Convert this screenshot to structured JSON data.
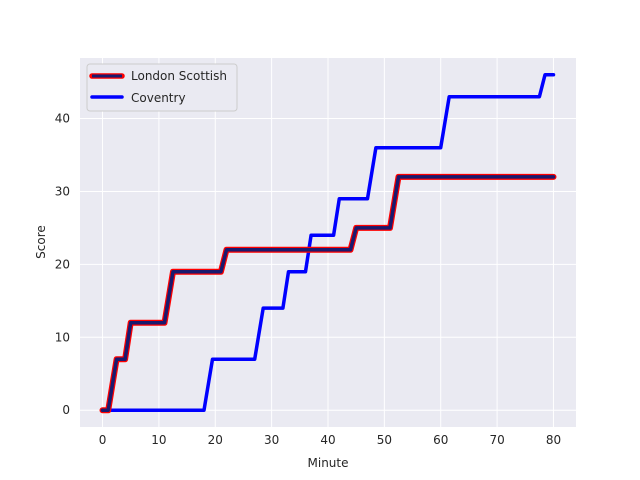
{
  "chart_data": {
    "type": "line",
    "title": "",
    "xlabel": "Minute",
    "ylabel": "Score",
    "xlim": [
      -4,
      84
    ],
    "ylim": [
      -2.3,
      48.3
    ],
    "xticks": [
      0,
      10,
      20,
      30,
      40,
      50,
      60,
      70,
      80
    ],
    "yticks": [
      0,
      10,
      20,
      30,
      40
    ],
    "grid": true,
    "legend_position": "upper-left",
    "background": "#eaeaf2",
    "series": [
      {
        "name": "London Scottish",
        "style": "navy line with red outline",
        "line_color": "#1a1a6e",
        "outline_color": "#ff0000",
        "points": [
          [
            0,
            0
          ],
          [
            1,
            0
          ],
          [
            2.5,
            7
          ],
          [
            4,
            7
          ],
          [
            5,
            12
          ],
          [
            11,
            12
          ],
          [
            12.5,
            19
          ],
          [
            21,
            19
          ],
          [
            22,
            22
          ],
          [
            44,
            22
          ],
          [
            45,
            25
          ],
          [
            51,
            25
          ],
          [
            52.5,
            32
          ],
          [
            80,
            32
          ]
        ]
      },
      {
        "name": "Coventry",
        "style": "blue line",
        "line_color": "#0000ff",
        "points": [
          [
            0,
            0
          ],
          [
            18,
            0
          ],
          [
            19.5,
            7
          ],
          [
            27,
            7
          ],
          [
            28.5,
            14
          ],
          [
            32,
            14
          ],
          [
            33,
            19
          ],
          [
            36,
            19
          ],
          [
            37,
            24
          ],
          [
            41,
            24
          ],
          [
            42,
            29
          ],
          [
            47,
            29
          ],
          [
            48.5,
            36
          ],
          [
            60,
            36
          ],
          [
            61.5,
            43
          ],
          [
            77.5,
            43
          ],
          [
            78.5,
            46
          ],
          [
            80,
            46
          ]
        ]
      }
    ]
  }
}
